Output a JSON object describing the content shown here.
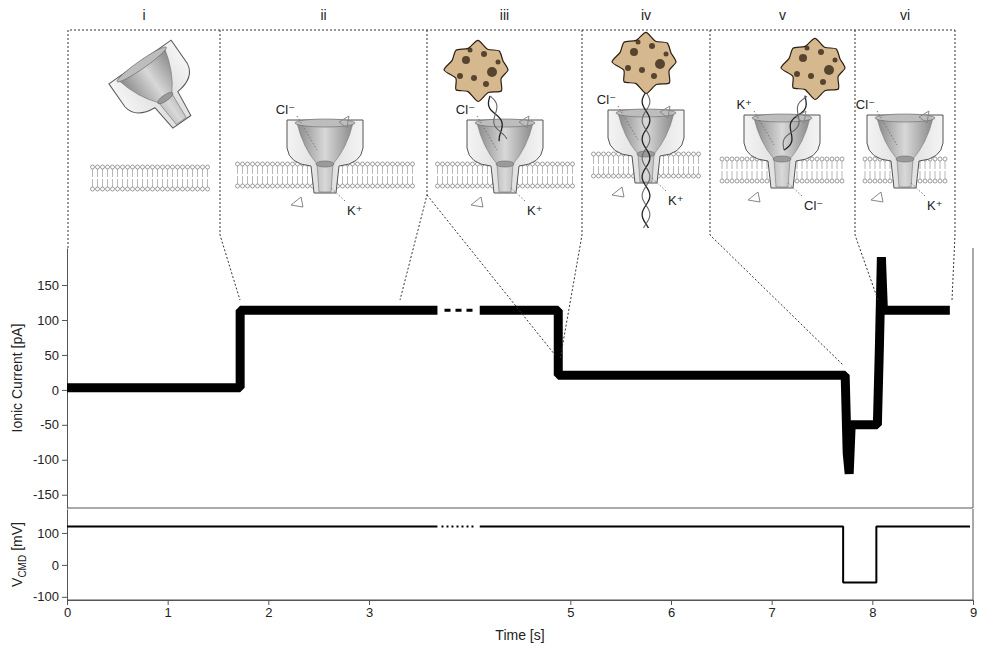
{
  "chart_data": [
    {
      "type": "line",
      "ylabel": "Ionic Current [pA]",
      "xlim": [
        0,
        9
      ],
      "ylim": [
        -169,
        203
      ],
      "yticks": [
        -150,
        -100,
        -50,
        0,
        50,
        100,
        150
      ],
      "tick_labels": "y",
      "panels": [
        {
          "label": "i",
          "ions": []
        },
        {
          "label": "ii",
          "ions": [
            "Cl⁻",
            "K⁺"
          ]
        },
        {
          "label": "iii",
          "ions": [
            "Cl⁻",
            "K⁺"
          ]
        },
        {
          "label": "iv",
          "ions": [
            "Cl⁻",
            "K⁺"
          ]
        },
        {
          "label": "v",
          "ions": [
            "K⁺",
            "Cl⁻"
          ]
        },
        {
          "label": "vi",
          "ions": [
            "Cl⁻",
            "K⁺"
          ]
        }
      ],
      "series": [
        {
          "color": "#000000",
          "x": [
            0,
            1.72,
            1.72,
            3.68,
            3.9,
            4.1,
            4.88,
            4.88,
            7.73,
            7.75,
            7.77,
            7.79,
            8.05,
            8.07,
            8.09,
            8.11,
            8.77
          ],
          "values": [
            3,
            3,
            114,
            114,
            null,
            114,
            114,
            21,
            21,
            -90,
            -120,
            -50,
            -50,
            60,
            190,
            114,
            114
          ]
        },
        {
          "color": "#000000",
          "line_style": "dashed",
          "x": [
            3.75,
            4.03
          ],
          "values": [
            114,
            114
          ]
        }
      ]
    },
    {
      "type": "line",
      "xlabel": "Time [s]",
      "ylabel": "V",
      "ylabel_sub": "CMD",
      "ylabel_unit": "[mV]",
      "xlim": [
        0,
        9
      ],
      "ylim": [
        -110,
        175
      ],
      "xticks": [
        0,
        1,
        2,
        3,
        5,
        6,
        7,
        8,
        9
      ],
      "yticks": [
        -100,
        0,
        100
      ],
      "series": [
        {
          "color": "#000000",
          "x": [
            0,
            3.68,
            3.9,
            4.1,
            7.71,
            7.71,
            8.04,
            8.04,
            8.97
          ],
          "values": [
            120,
            120,
            null,
            120,
            120,
            -55,
            -55,
            120,
            120
          ]
        },
        {
          "color": "#000000",
          "line_style": "dotted",
          "x": [
            3.72,
            4.05
          ],
          "values": [
            120,
            120
          ]
        }
      ]
    }
  ]
}
